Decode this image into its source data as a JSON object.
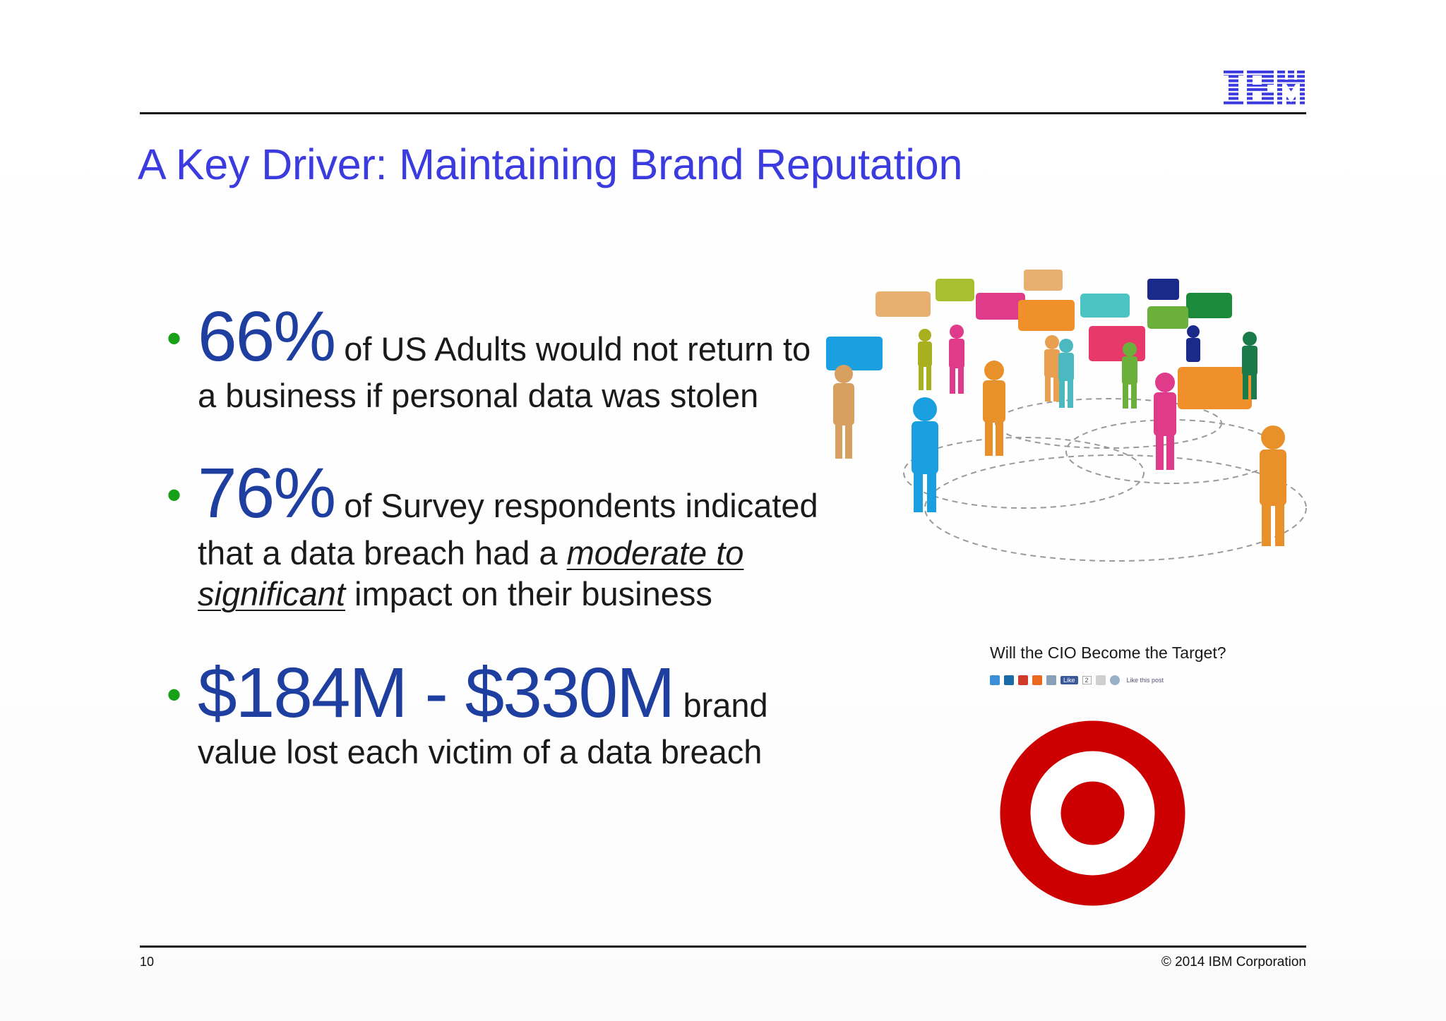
{
  "header": {
    "logo_text": "IBM"
  },
  "title": "A Key Driver:  Maintaining Brand Reputation",
  "bullets": [
    {
      "highlight": "66%",
      "lead": " of US Adults would not return to",
      "line2": "a business if personal data was stolen"
    },
    {
      "highlight": "76%",
      "lead": " of Survey respondents indicated",
      "line2_pre": "that a data breach had a ",
      "line2_em": "moderate to",
      "line3_em": "significant",
      "line3_post": " impact on their business"
    },
    {
      "highlight": "$184M - $330M",
      "lead": " brand",
      "line2": "value lost each victim of a data breach"
    }
  ],
  "side": {
    "caption": "Will the CIO Become the Target?",
    "share_like_label": "Like",
    "share_count": "2",
    "share_like_post": "Like this post"
  },
  "footer": {
    "page_number": "10",
    "copyright": "© 2014 IBM Corporation"
  },
  "colors": {
    "title": "#3b3bdf",
    "highlight": "#1f3fa0",
    "bullet": "#19a019",
    "target_red": "#cc0000"
  }
}
